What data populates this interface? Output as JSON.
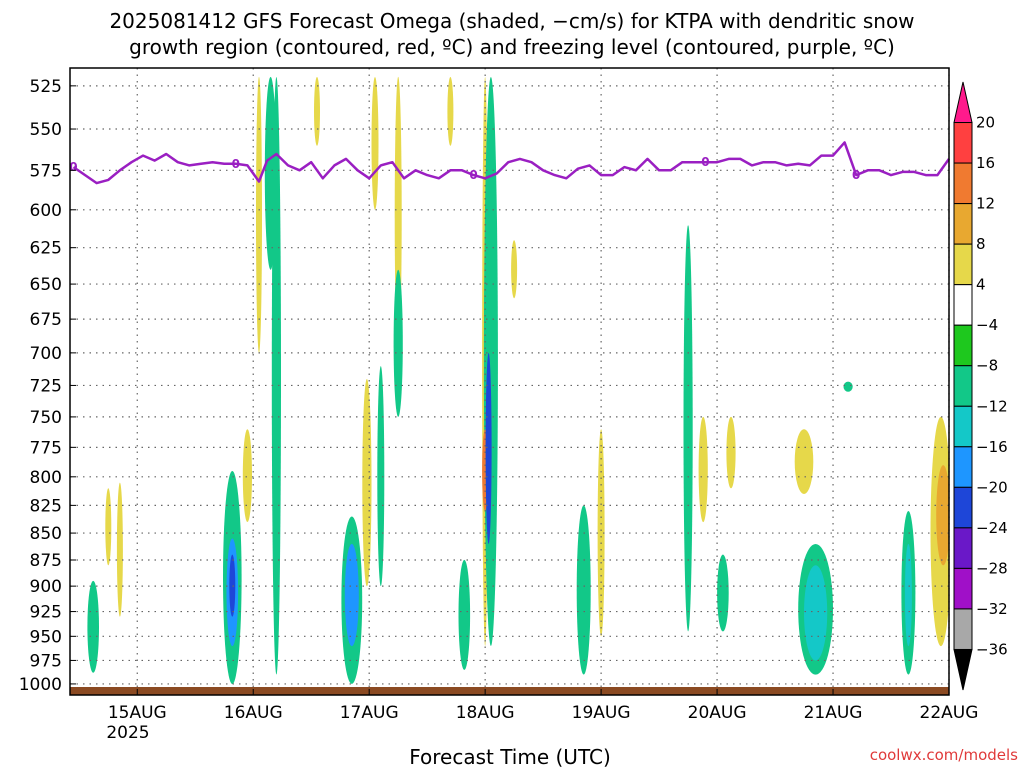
{
  "chart_data": {
    "type": "heatmap",
    "title_line1": "2025081412 GFS Forecast Omega (shaded, −cm/s) for KTPA with dendritic snow",
    "title_line2": "growth region (contoured, red, ºC) and freezing level (contoured, purple, ºC)",
    "xlabel": "Forecast Time (UTC)",
    "ylabel": "",
    "x_tick_labels": [
      "15AUG",
      "16AUG",
      "17AUG",
      "18AUG",
      "19AUG",
      "20AUG",
      "21AUG",
      "22AUG"
    ],
    "x_year_label": "2025",
    "x_ticks_day": [
      15,
      16,
      17,
      18,
      19,
      20,
      21,
      22
    ],
    "xlim_day": [
      14.42,
      22.0
    ],
    "y_tick_labels": [
      "525",
      "550",
      "575",
      "600",
      "625",
      "650",
      "675",
      "700",
      "725",
      "750",
      "775",
      "800",
      "825",
      "850",
      "875",
      "900",
      "925",
      "950",
      "975",
      "1000"
    ],
    "y_ticks_hpa": [
      525,
      550,
      575,
      600,
      625,
      650,
      675,
      700,
      725,
      750,
      775,
      800,
      825,
      850,
      875,
      900,
      925,
      950,
      975,
      1000
    ],
    "ylim_hpa": [
      515,
      1012
    ],
    "y_scale": "log",
    "grid": true,
    "colorbar": {
      "tick_labels": [
        "20",
        "16",
        "12",
        "8",
        "4",
        "−4",
        "−8",
        "−12",
        "−16",
        "−20",
        "−24",
        "−28",
        "−32",
        "−36"
      ],
      "colors": [
        "#ff1a8c",
        "#ff4040",
        "#f07a30",
        "#e8a830",
        "#e6d84a",
        "#ffffff",
        "#1ec81e",
        "#12c888",
        "#14c8c8",
        "#1e96ff",
        "#1e46d8",
        "#6a18c8",
        "#a010c8",
        "#a8a8a8",
        "#000000"
      ]
    },
    "freezing_level": {
      "label": "0",
      "color": "#9a1fc2",
      "days": [
        14.45,
        14.55,
        14.65,
        14.75,
        14.85,
        14.95,
        15.05,
        15.15,
        15.25,
        15.35,
        15.45,
        15.55,
        15.65,
        15.75,
        15.85,
        15.95,
        16.05,
        16.12,
        16.2,
        16.3,
        16.4,
        16.5,
        16.6,
        16.7,
        16.8,
        16.9,
        17.0,
        17.1,
        17.2,
        17.3,
        17.4,
        17.5,
        17.6,
        17.7,
        17.8,
        17.9,
        18.0,
        18.1,
        18.2,
        18.3,
        18.4,
        18.5,
        18.6,
        18.7,
        18.8,
        18.9,
        19.0,
        19.1,
        19.2,
        19.3,
        19.4,
        19.5,
        19.6,
        19.7,
        19.8,
        19.9,
        20.0,
        20.1,
        20.2,
        20.3,
        20.4,
        20.5,
        20.6,
        20.7,
        20.8,
        20.9,
        21.0,
        21.1,
        21.2,
        21.3,
        21.4,
        21.5,
        21.6,
        21.7,
        21.8,
        21.9,
        22.0
      ],
      "temps_hpa": [
        573,
        578,
        583,
        581,
        575,
        570,
        566,
        569,
        565,
        570,
        572,
        571,
        570,
        571,
        571,
        572,
        582,
        569,
        565,
        572,
        575,
        570,
        580,
        572,
        568,
        575,
        580,
        572,
        570,
        580,
        575,
        578,
        580,
        575,
        575,
        578,
        580,
        577,
        570,
        568,
        570,
        575,
        578,
        580,
        574,
        572,
        578,
        578,
        573,
        575,
        568,
        575,
        575,
        570,
        570,
        570,
        570,
        568,
        568,
        572,
        570,
        570,
        572,
        571,
        572,
        566,
        566,
        558,
        578,
        575,
        575,
        578,
        576,
        576,
        578,
        578,
        568
      ]
    },
    "omega_regions": [
      {
        "day": 14.62,
        "p_top": 895,
        "p_bot": 988,
        "halfwidth": 0.05,
        "value": -8
      },
      {
        "day": 15.82,
        "p_top": 795,
        "p_bot": 1000,
        "halfwidth": 0.08,
        "value": -8
      },
      {
        "day": 15.82,
        "p_top": 855,
        "p_bot": 960,
        "halfwidth": 0.05,
        "value": -16
      },
      {
        "day": 15.82,
        "p_top": 870,
        "p_bot": 930,
        "halfwidth": 0.02,
        "value": -20
      },
      {
        "day": 16.2,
        "p_top": 520,
        "p_bot": 990,
        "halfwidth": 0.04,
        "value": -8
      },
      {
        "day": 16.15,
        "p_top": 520,
        "p_bot": 640,
        "halfwidth": 0.05,
        "value": -8
      },
      {
        "day": 16.85,
        "p_top": 835,
        "p_bot": 1000,
        "halfwidth": 0.09,
        "value": -8
      },
      {
        "day": 16.85,
        "p_top": 860,
        "p_bot": 960,
        "halfwidth": 0.06,
        "value": -16
      },
      {
        "day": 17.1,
        "p_top": 710,
        "p_bot": 900,
        "halfwidth": 0.03,
        "value": -8
      },
      {
        "day": 17.25,
        "p_top": 640,
        "p_bot": 750,
        "halfwidth": 0.04,
        "value": -8
      },
      {
        "day": 17.82,
        "p_top": 875,
        "p_bot": 985,
        "halfwidth": 0.05,
        "value": -8
      },
      {
        "day": 18.05,
        "p_top": 520,
        "p_bot": 960,
        "halfwidth": 0.06,
        "value": -8
      },
      {
        "day": 18.03,
        "p_top": 700,
        "p_bot": 860,
        "halfwidth": 0.02,
        "value": -20
      },
      {
        "day": 18.85,
        "p_top": 825,
        "p_bot": 990,
        "halfwidth": 0.06,
        "value": -8
      },
      {
        "day": 19.75,
        "p_top": 610,
        "p_bot": 945,
        "halfwidth": 0.04,
        "value": -8
      },
      {
        "day": 20.05,
        "p_top": 870,
        "p_bot": 945,
        "halfwidth": 0.05,
        "value": -8
      },
      {
        "day": 20.85,
        "p_top": 860,
        "p_bot": 990,
        "halfwidth": 0.15,
        "value": -8
      },
      {
        "day": 20.85,
        "p_top": 880,
        "p_bot": 975,
        "halfwidth": 0.1,
        "value": -12
      },
      {
        "day": 21.65,
        "p_top": 830,
        "p_bot": 990,
        "halfwidth": 0.06,
        "value": -8
      },
      {
        "day": 21.65,
        "p_top": 860,
        "p_bot": 960,
        "halfwidth": 0.03,
        "value": -12
      },
      {
        "day": 21.13,
        "p_top": 722,
        "p_bot": 730,
        "halfwidth": 0.04,
        "value": -8
      }
    ],
    "ascent_regions": [
      {
        "day": 14.75,
        "p_top": 810,
        "p_bot": 880,
        "halfwidth": 0.025,
        "value": 4
      },
      {
        "day": 14.85,
        "p_top": 805,
        "p_bot": 930,
        "halfwidth": 0.025,
        "value": 4
      },
      {
        "day": 15.95,
        "p_top": 760,
        "p_bot": 840,
        "halfwidth": 0.04,
        "value": 4
      },
      {
        "day": 16.05,
        "p_top": 520,
        "p_bot": 700,
        "halfwidth": 0.02,
        "value": 4
      },
      {
        "day": 16.55,
        "p_top": 520,
        "p_bot": 560,
        "halfwidth": 0.02,
        "value": 4
      },
      {
        "day": 17.05,
        "p_top": 520,
        "p_bot": 600,
        "halfwidth": 0.03,
        "value": 4
      },
      {
        "day": 17.25,
        "p_top": 520,
        "p_bot": 700,
        "halfwidth": 0.03,
        "value": 4
      },
      {
        "day": 16.98,
        "p_top": 720,
        "p_bot": 900,
        "halfwidth": 0.04,
        "value": 4
      },
      {
        "day": 17.7,
        "p_top": 520,
        "p_bot": 560,
        "halfwidth": 0.02,
        "value": 4
      },
      {
        "day": 18.25,
        "p_top": 620,
        "p_bot": 660,
        "halfwidth": 0.02,
        "value": 4
      },
      {
        "day": 18.0,
        "p_top": 520,
        "p_bot": 960,
        "halfwidth": 0.025,
        "value": 4
      },
      {
        "day": 18.0,
        "p_top": 760,
        "p_bot": 830,
        "halfwidth": 0.012,
        "value": 12
      },
      {
        "day": 19.0,
        "p_top": 760,
        "p_bot": 950,
        "halfwidth": 0.03,
        "value": 4
      },
      {
        "day": 19.88,
        "p_top": 750,
        "p_bot": 840,
        "halfwidth": 0.04,
        "value": 4
      },
      {
        "day": 20.12,
        "p_top": 750,
        "p_bot": 810,
        "halfwidth": 0.04,
        "value": 4
      },
      {
        "day": 20.75,
        "p_top": 760,
        "p_bot": 815,
        "halfwidth": 0.08,
        "value": 4
      },
      {
        "day": 21.93,
        "p_top": 750,
        "p_bot": 960,
        "halfwidth": 0.09,
        "value": 4
      },
      {
        "day": 21.95,
        "p_top": 790,
        "p_bot": 880,
        "halfwidth": 0.06,
        "value": 8
      }
    ],
    "ground_color": "#8b4a22",
    "credit": "coolwx.com/models"
  }
}
